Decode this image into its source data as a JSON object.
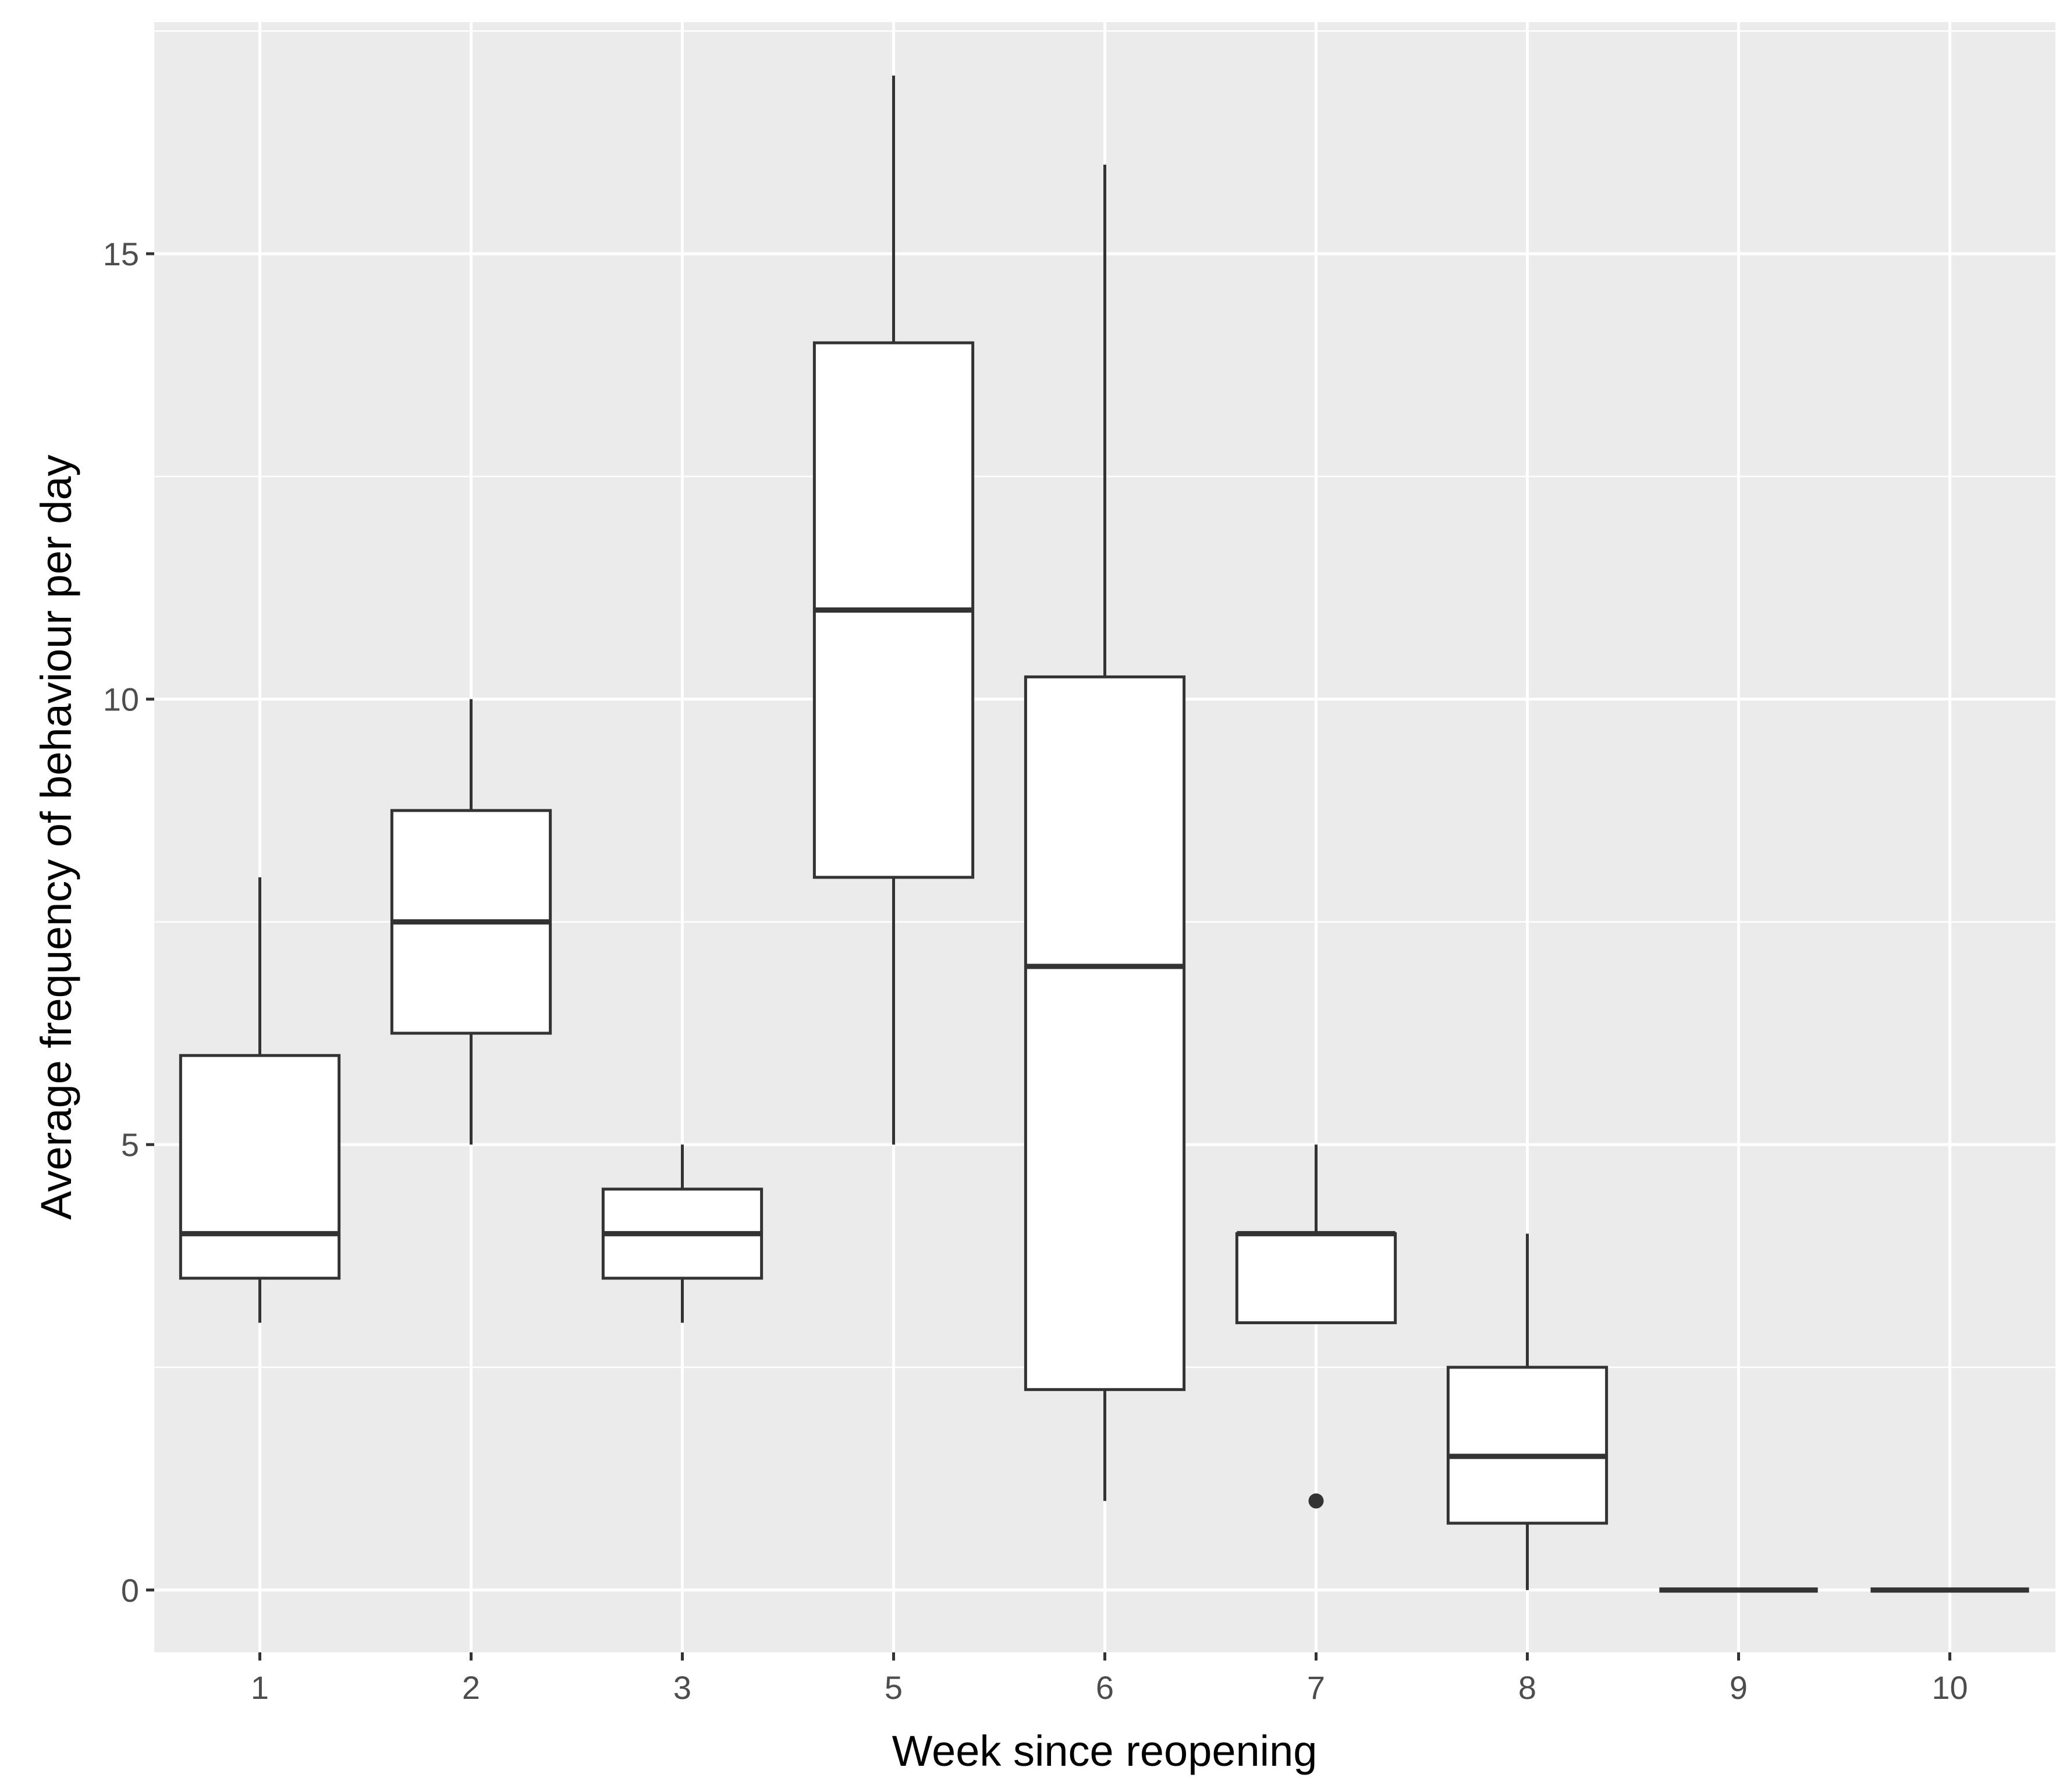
{
  "chart_data": {
    "type": "boxplot",
    "xlabel": "Week since reopening",
    "ylabel": "Average frequency of behaviour per day",
    "categories": [
      "1",
      "2",
      "3",
      "5",
      "6",
      "7",
      "8",
      "9",
      "10"
    ],
    "ylim": [
      -0.7,
      17.6
    ],
    "yticks": [
      0,
      5,
      10,
      15
    ],
    "ytick_labels": [
      "0",
      "5",
      "10",
      "15"
    ],
    "grid": true,
    "boxes": [
      {
        "category": "1",
        "whisker_low": 3.0,
        "q1": 3.5,
        "median": 4.0,
        "q3": 6.0,
        "whisker_high": 8.0,
        "outliers": []
      },
      {
        "category": "2",
        "whisker_low": 5.0,
        "q1": 6.25,
        "median": 7.5,
        "q3": 8.75,
        "whisker_high": 10.0,
        "outliers": []
      },
      {
        "category": "3",
        "whisker_low": 3.0,
        "q1": 3.5,
        "median": 4.0,
        "q3": 4.5,
        "whisker_high": 5.0,
        "outliers": []
      },
      {
        "category": "5",
        "whisker_low": 5.0,
        "q1": 8.0,
        "median": 11.0,
        "q3": 14.0,
        "whisker_high": 17.0,
        "outliers": []
      },
      {
        "category": "6",
        "whisker_low": 1.0,
        "q1": 2.25,
        "median": 7.0,
        "q3": 10.25,
        "whisker_high": 16.0,
        "outliers": []
      },
      {
        "category": "7",
        "whisker_low": 3.0,
        "q1": 3.0,
        "median": 4.0,
        "q3": 4.0,
        "whisker_high": 5.0,
        "outliers": [
          1.0
        ]
      },
      {
        "category": "8",
        "whisker_low": 0.0,
        "q1": 0.75,
        "median": 1.5,
        "q3": 2.5,
        "whisker_high": 4.0,
        "outliers": []
      },
      {
        "category": "9",
        "whisker_low": 0.0,
        "q1": 0.0,
        "median": 0.0,
        "q3": 0.0,
        "whisker_high": 0.0,
        "outliers": []
      },
      {
        "category": "10",
        "whisker_low": 0.0,
        "q1": 0.0,
        "median": 0.0,
        "q3": 0.0,
        "whisker_high": 0.0,
        "outliers": []
      }
    ],
    "colors": {
      "panel_background": "#ebebeb",
      "box_fill": "#ffffff",
      "line": "#333333"
    }
  }
}
